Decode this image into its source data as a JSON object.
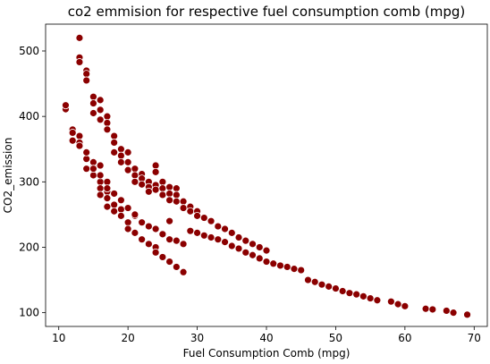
{
  "chart_data": {
    "type": "scatter",
    "title": "co2 emmision for respective fuel consumption comb (mpg)",
    "xlabel": "Fuel Consumption Comb (mpg)",
    "ylabel": "CO2_emission",
    "xlim": [
      8.1,
      71.9
    ],
    "ylim": [
      79,
      541
    ],
    "xticks": [
      10,
      20,
      30,
      40,
      50,
      60,
      70
    ],
    "yticks": [
      100,
      200,
      300,
      400,
      500
    ],
    "grid": false,
    "legend": "none",
    "marker_color": "#8b0000",
    "marker_edge_color": "#ffffff",
    "x": [
      11,
      11,
      11,
      12,
      12,
      13,
      13,
      13,
      13,
      13,
      14,
      14,
      14,
      14,
      14,
      14,
      15,
      15,
      15,
      15,
      15,
      15,
      16,
      16,
      16,
      16,
      16,
      16,
      17,
      17,
      17,
      17,
      17,
      17,
      18,
      18,
      18,
      18,
      18,
      19,
      19,
      19,
      19,
      19,
      20,
      20,
      20,
      20,
      20,
      21,
      21,
      21,
      21,
      22,
      22,
      22,
      22,
      23,
      23,
      23,
      23,
      24,
      24,
      24,
      24,
      24,
      25,
      25,
      25,
      25,
      26,
      26,
      26,
      26,
      27,
      27,
      27,
      27,
      28,
      28,
      28,
      29,
      29,
      29,
      30,
      30,
      30,
      31,
      31,
      32,
      32,
      33,
      33,
      34,
      34,
      35,
      35,
      36,
      36,
      37,
      37,
      38,
      38,
      39,
      39,
      40,
      40,
      41,
      42,
      43,
      44,
      45,
      46,
      47,
      48,
      49,
      50,
      51,
      52,
      53,
      54,
      55,
      56,
      58,
      59,
      60,
      63,
      64,
      66,
      67,
      69,
      12,
      13,
      14,
      15,
      15,
      16,
      16,
      17,
      17,
      18,
      19,
      20,
      21,
      22,
      23,
      24,
      25,
      26,
      27,
      28,
      21,
      24,
      26
    ],
    "y": [
      415,
      411,
      417,
      380,
      363,
      520,
      490,
      483,
      370,
      360,
      470,
      465,
      455,
      345,
      335,
      320,
      430,
      420,
      405,
      330,
      322,
      310,
      425,
      410,
      395,
      300,
      290,
      280,
      400,
      390,
      380,
      285,
      275,
      262,
      370,
      360,
      345,
      265,
      255,
      350,
      340,
      330,
      258,
      248,
      345,
      330,
      318,
      238,
      228,
      320,
      310,
      300,
      222,
      312,
      305,
      296,
      212,
      300,
      292,
      285,
      205,
      325,
      295,
      288,
      200,
      192,
      300,
      290,
      280,
      185,
      292,
      282,
      272,
      178,
      290,
      280,
      270,
      170,
      270,
      260,
      162,
      262,
      255,
      225,
      255,
      248,
      222,
      245,
      218,
      240,
      215,
      232,
      212,
      228,
      208,
      222,
      202,
      215,
      198,
      210,
      192,
      205,
      188,
      200,
      183,
      195,
      178,
      175,
      172,
      170,
      167,
      165,
      150,
      147,
      143,
      140,
      137,
      133,
      130,
      128,
      125,
      122,
      119,
      117,
      113,
      110,
      106,
      105,
      103,
      100,
      97,
      375,
      355,
      345,
      330,
      320,
      325,
      310,
      300,
      290,
      282,
      272,
      260,
      248,
      238,
      232,
      228,
      220,
      212,
      210,
      205,
      250,
      315,
      240
    ]
  }
}
